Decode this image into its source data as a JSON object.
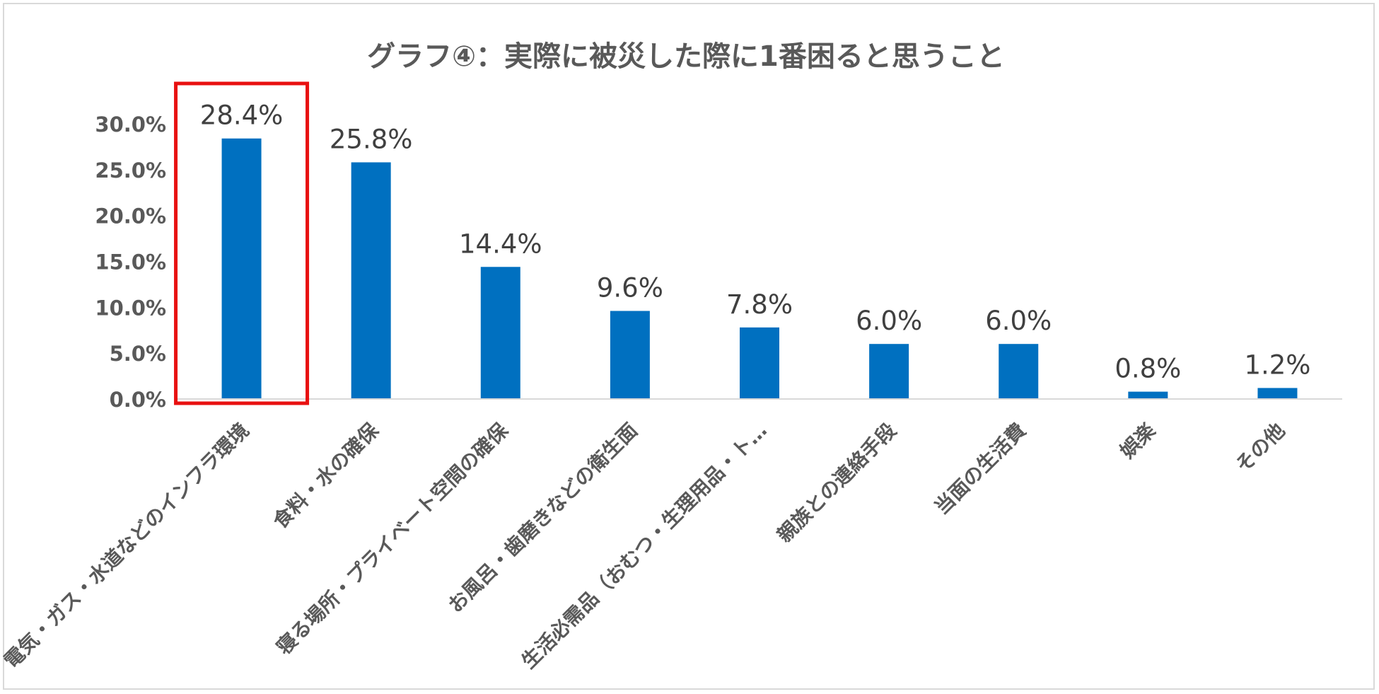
{
  "chart_data": {
    "type": "bar",
    "title": "グラフ④：実際に被災した際に1番困ると思うこと",
    "categories": [
      "電気・ガス・水道などのインフラ環境",
      "食料・水の確保",
      "寝る場所・プライベート空間の確保",
      "お風呂・歯磨きなどの衛生面",
      "生活必需品（おむつ・生理用品・ト…",
      "親族との連絡手段",
      "当面の生活費",
      "娯楽",
      "その他"
    ],
    "values": [
      28.4,
      25.8,
      14.4,
      9.6,
      7.8,
      6.0,
      6.0,
      0.8,
      1.2
    ],
    "data_labels": [
      "28.4%",
      "25.8%",
      "14.4%",
      "9.6%",
      "7.8%",
      "6.0%",
      "6.0%",
      "0.8%",
      "1.2%"
    ],
    "yticks": [
      "0.0%",
      "5.0%",
      "10.0%",
      "15.0%",
      "20.0%",
      "25.0%",
      "30.0%"
    ],
    "ytick_values": [
      0,
      5,
      10,
      15,
      20,
      25,
      30
    ],
    "ylim": [
      0,
      30
    ],
    "xlabel": "",
    "ylabel": "",
    "grid": false,
    "legend": "none",
    "highlighted_category": "電気・ガス・水道などのインフラ環境",
    "colors": {
      "bar": "#0070c0",
      "highlight_box": "#e81010",
      "axis": "#d9d9d9",
      "text": "#595959"
    }
  }
}
